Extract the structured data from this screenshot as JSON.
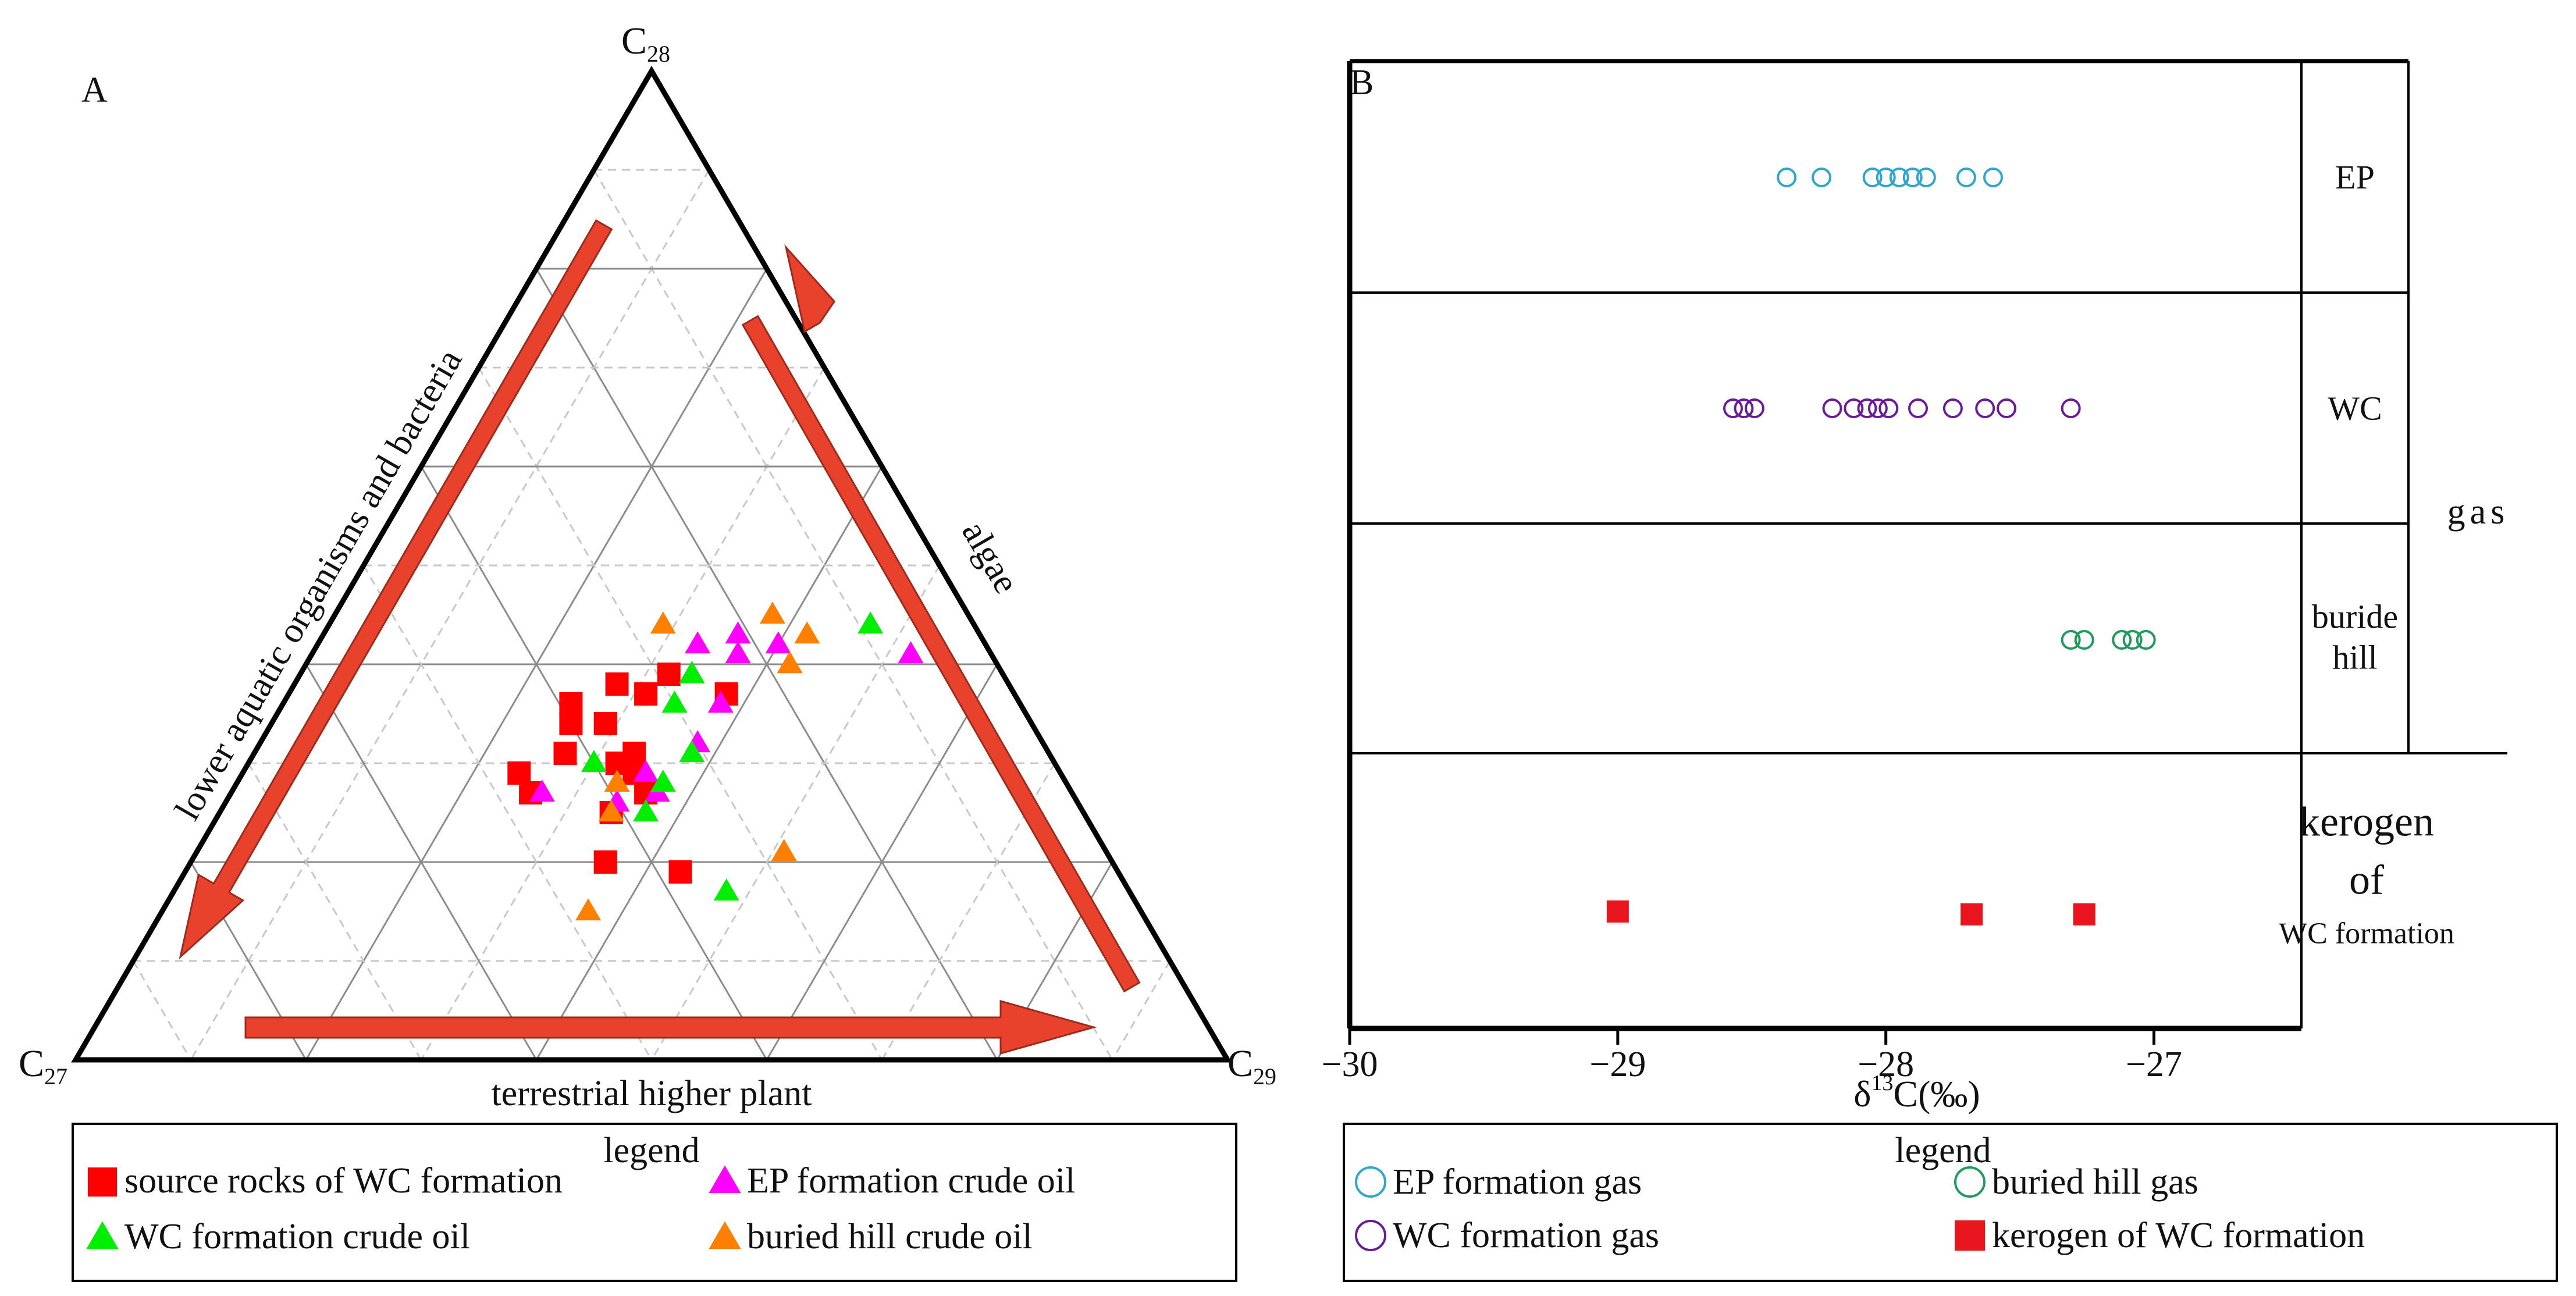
{
  "chart_data": [
    {
      "panel": "A",
      "type": "scatter",
      "subtype": "ternary",
      "vertices": {
        "top": {
          "base": "C",
          "sub": "28"
        },
        "left": {
          "base": "C",
          "sub": "27"
        },
        "right": {
          "base": "C",
          "sub": "29"
        }
      },
      "gridlines": [
        10,
        20,
        30,
        40,
        50,
        60,
        70,
        80,
        90
      ],
      "annotations": {
        "left_arrow": "lower aquatic organisms and bacteria",
        "right_arrow": "algae",
        "bottom_arrow": "terrestrial higher plant"
      },
      "legend": {
        "title": "legend",
        "entries": [
          {
            "label": "source rocks of WC formation",
            "marker": "square",
            "color": "#ff0000"
          },
          {
            "label": "EP formation crude oil",
            "marker": "triangle",
            "color": "#ff00ff"
          },
          {
            "label": "WC formation crude oil",
            "marker": "triangle",
            "color": "#00ee00"
          },
          {
            "label": "buried hill crude oil",
            "marker": "triangle",
            "color": "#ff7f00"
          }
        ]
      },
      "series": [
        {
          "name": "source rocks of WC formation",
          "marker": "square",
          "color": "#ff0000",
          "points": [
            [
              27,
              36
            ],
            [
              37,
              38
            ],
            [
              39,
              32
            ],
            [
              38,
              28
            ],
            [
              37,
              31
            ],
            [
              31,
              33
            ],
            [
              29,
              34
            ],
            [
              34,
              26
            ],
            [
              34,
              29
            ],
            [
              36,
              25
            ],
            [
              31,
              27
            ],
            [
              27,
              26
            ],
            [
              25,
              34
            ],
            [
              20,
              36
            ],
            [
              29,
              24
            ],
            [
              30,
              32
            ],
            [
              19,
              43
            ]
          ]
        },
        {
          "name": "EP formation crude oil",
          "marker": "triangle",
          "color": "#ff00ff",
          "points": [
            [
              41,
              52
            ],
            [
              42,
              40
            ],
            [
              43,
              36
            ],
            [
              41,
              37
            ],
            [
              42,
              33
            ],
            [
              39,
              34
            ],
            [
              36,
              38
            ],
            [
              32,
              38
            ],
            [
              29,
              35
            ],
            [
              27,
              37
            ],
            [
              26,
              34
            ],
            [
              27,
              27
            ]
          ]
        },
        {
          "name": "WC formation crude oil",
          "marker": "triangle",
          "color": "#00ee00",
          "points": [
            [
              17,
              48
            ],
            [
              44,
              47
            ],
            [
              39,
              34
            ],
            [
              36,
              34
            ],
            [
              31,
              38
            ],
            [
              28,
              37
            ],
            [
              25,
              37
            ],
            [
              30,
              30
            ]
          ]
        },
        {
          "name": "buried hill crude oil",
          "marker": "triangle",
          "color": "#ff7f00",
          "points": [
            [
              21,
              51
            ],
            [
              43,
              42
            ],
            [
              40,
              42
            ],
            [
              45,
              38
            ],
            [
              44,
              29
            ],
            [
              25,
              34
            ],
            [
              28,
              33
            ],
            [
              15,
              37
            ]
          ]
        }
      ]
    },
    {
      "panel": "B",
      "type": "scatter",
      "subtype": "strip",
      "xlabel": {
        "pre": "δ",
        "sup": "13",
        "post": "C(‰)"
      },
      "xlim": [
        -30,
        -26.45
      ],
      "xticks": [
        -30,
        -29,
        -28,
        -27
      ],
      "xtick_labels": [
        "−30",
        "−29",
        "−28",
        "−27"
      ],
      "rows": [
        {
          "label": "EP",
          "name": "EP formation gas",
          "marker": "circle-open",
          "color": "#2ea7cf",
          "values": [
            -28.37,
            -28.24,
            -28.05,
            -28.0,
            -27.95,
            -27.9,
            -27.85,
            -27.7,
            -27.6
          ]
        },
        {
          "label": "WC",
          "name": "WC formation gas",
          "marker": "circle-open",
          "color": "#6a1b9a",
          "values": [
            -28.57,
            -28.53,
            -28.49,
            -28.2,
            -28.12,
            -28.07,
            -28.03,
            -27.99,
            -27.88,
            -27.75,
            -27.63,
            -27.55,
            -27.31
          ]
        },
        {
          "label_lines": [
            "buride",
            "hill"
          ],
          "name": "buried hill gas",
          "marker": "circle-open",
          "color": "#1e9a5a",
          "values": [
            -27.31,
            -27.26,
            -27.12,
            -27.08,
            -27.03
          ]
        },
        {
          "label_lines": [
            "kerogen",
            "of",
            "WC formation"
          ],
          "name": "kerogen of WC formation",
          "marker": "square",
          "color": "#e8141e",
          "values": [
            -29.0,
            -27.68,
            -27.26
          ]
        }
      ],
      "group_label": "gas",
      "legend": {
        "title": "legend",
        "entries": [
          {
            "label": "EP formation gas",
            "marker": "circle-open",
            "color": "#2ea7cf"
          },
          {
            "label": "buried hill gas",
            "marker": "circle-open",
            "color": "#1e9a5a"
          },
          {
            "label": "WC formation gas",
            "marker": "circle-open",
            "color": "#6a1b9a"
          },
          {
            "label": "kerogen of WC formation",
            "marker": "square",
            "color": "#e8141e"
          }
        ]
      }
    }
  ],
  "panel_labels": {
    "a": "A",
    "b": "B"
  },
  "colors": {
    "arrow": "#e8412c",
    "arrow_stroke": "#9e2a1e",
    "axis": "#000000"
  }
}
